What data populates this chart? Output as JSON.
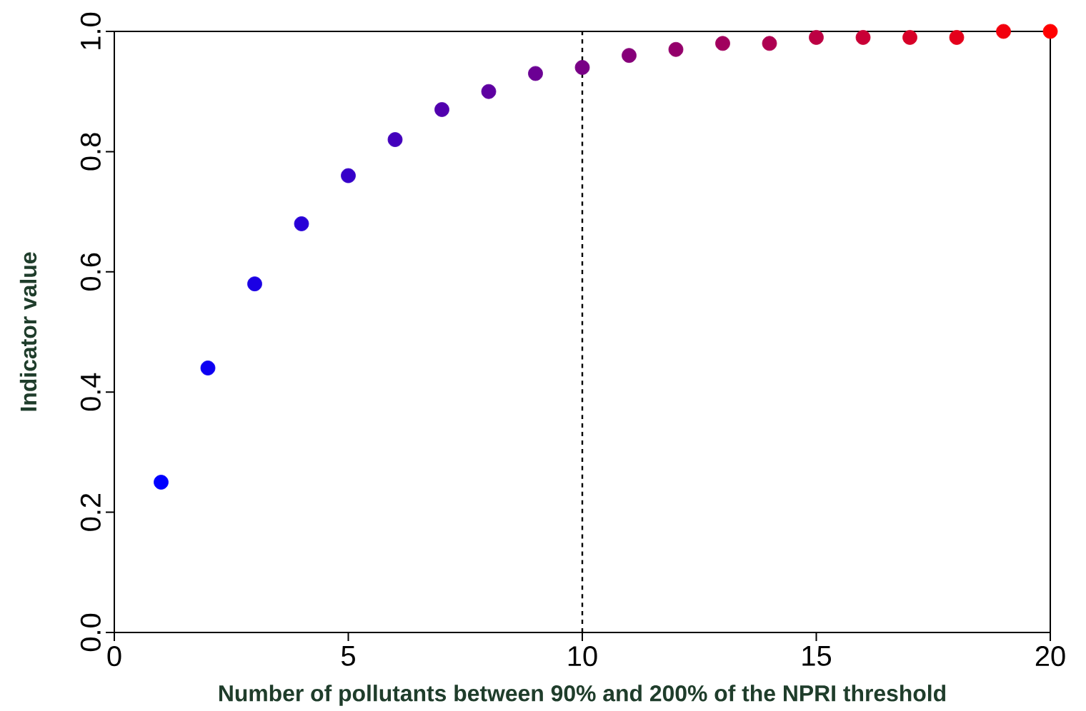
{
  "chart_data": {
    "type": "scatter",
    "xlabel": "Number of pollutants between 90% and 200% of the NPRI threshold",
    "ylabel": "Indicator value",
    "x": [
      1,
      2,
      3,
      4,
      5,
      6,
      7,
      8,
      9,
      10,
      11,
      12,
      13,
      14,
      15,
      16,
      17,
      18,
      19,
      20
    ],
    "values": [
      0.25,
      0.44,
      0.58,
      0.68,
      0.76,
      0.82,
      0.87,
      0.9,
      0.93,
      0.94,
      0.96,
      0.97,
      0.98,
      0.98,
      0.99,
      0.99,
      0.99,
      0.99,
      1.0,
      1.0
    ],
    "colors": [
      "#0000ff",
      "#0d00f2",
      "#1b00e4",
      "#2800d7",
      "#3600c9",
      "#4300bc",
      "#5100ae",
      "#5e00a1",
      "#6b0094",
      "#790086",
      "#860079",
      "#94006b",
      "#a1005e",
      "#ae0051",
      "#bc0043",
      "#c90036",
      "#d70028",
      "#e4001b",
      "#f2000d",
      "#ff0000"
    ],
    "xlim": [
      0,
      20
    ],
    "ylim": [
      0,
      1
    ],
    "xticks": [
      0,
      5,
      10,
      15,
      20
    ],
    "yticks": [
      {
        "value": 0,
        "label": "0.0"
      },
      {
        "value": 0.2,
        "label": "0.2"
      },
      {
        "value": 0.4,
        "label": "0.4"
      },
      {
        "value": 0.6,
        "label": "0.6"
      },
      {
        "value": 0.8,
        "label": "0.8"
      },
      {
        "value": 1,
        "label": "1.0"
      }
    ],
    "ref_lines": [
      {
        "axis": "x",
        "value": 10,
        "line_style": "dashed",
        "color": "#000000"
      }
    ],
    "marker": "circle"
  }
}
